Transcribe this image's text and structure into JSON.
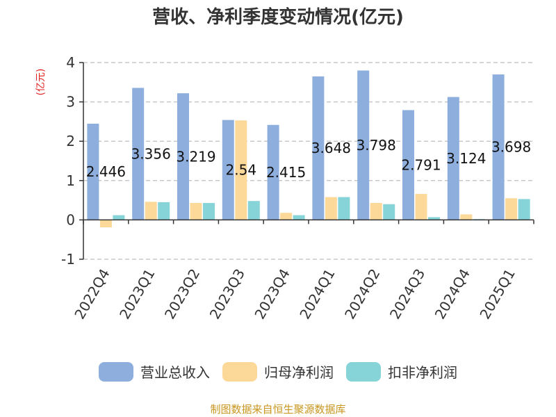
{
  "chart_data": {
    "type": "bar",
    "title": "营收、净利季度变动情况(亿元)",
    "ylabel": "(亿元)",
    "xlabel": "",
    "ylim": [
      -1,
      4
    ],
    "yticks": [
      -1,
      0,
      1,
      2,
      3,
      4
    ],
    "grid": true,
    "legend_position": "bottom",
    "categories": [
      "2022Q4",
      "2023Q1",
      "2023Q2",
      "2023Q3",
      "2023Q4",
      "2024Q1",
      "2024Q2",
      "2024Q3",
      "2024Q4",
      "2025Q1"
    ],
    "series": [
      {
        "name": "营业总收入",
        "color": "#8eafdd",
        "values": [
          2.446,
          3.356,
          3.219,
          2.54,
          2.415,
          3.648,
          3.798,
          2.791,
          3.124,
          3.698
        ]
      },
      {
        "name": "归母净利润",
        "color": "#fcd899",
        "values": [
          -0.19,
          0.46,
          0.43,
          2.53,
          0.18,
          0.58,
          0.43,
          0.66,
          0.14,
          0.55
        ]
      },
      {
        "name": "扣非净利润",
        "color": "#86d4d8",
        "values": [
          0.12,
          0.45,
          0.43,
          0.48,
          0.12,
          0.58,
          0.4,
          0.07,
          0.02,
          0.53
        ]
      }
    ],
    "data_labels": [
      "2.446",
      "3.356",
      "3.219",
      "2.54",
      "2.415",
      "3.648",
      "3.798",
      "2.791",
      "3.124",
      "3.698"
    ]
  },
  "footer": {
    "source": "制图数据来自恒生聚源数据库"
  }
}
